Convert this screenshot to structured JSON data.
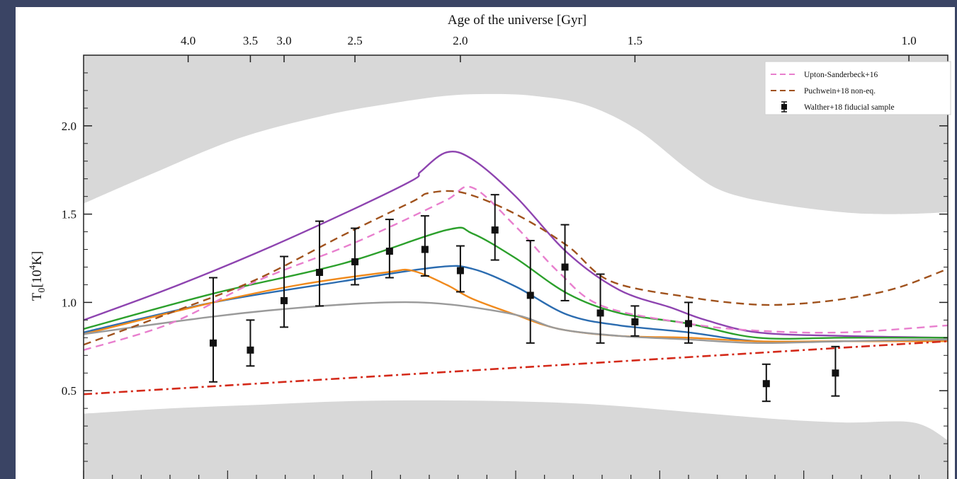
{
  "chart_data": {
    "type": "line",
    "title": "",
    "top_axis_label": "Age of the universe [Gyr]",
    "top_ticks": [
      "4.0",
      "3.5",
      "3.0",
      "2.5",
      "2.0",
      "1.5",
      "1.0"
    ],
    "ylabel": "T",
    "ylabel_sub": "0",
    "ylabel_unit_open": "[10",
    "ylabel_unit_exp": "4",
    "ylabel_unit_close": "K]",
    "ylim": [
      0.0,
      2.4
    ],
    "yticks": [
      "0.5",
      "1.0",
      "1.5",
      "2.0"
    ],
    "grid": false,
    "legend_position": "top-right",
    "legend": [
      {
        "label": "Upton-Sanderbeck+16",
        "color": "#e87fce",
        "style": "dashed"
      },
      {
        "label": "Puchwein+18 non-eq.",
        "color": "#a0521d",
        "style": "dashed"
      },
      {
        "label": "Walther+18 fiducial sample",
        "color": "#111111",
        "style": "marker"
      }
    ],
    "shaded_band": {
      "color": "#d8d8d8",
      "upper": [
        [
          0.0,
          1.56
        ],
        [
          0.08,
          1.73
        ],
        [
          0.18,
          1.93
        ],
        [
          0.28,
          2.06
        ],
        [
          0.36,
          2.13
        ],
        [
          0.42,
          2.17
        ],
        [
          0.47,
          2.18
        ],
        [
          0.52,
          2.17
        ],
        [
          0.58,
          2.12
        ],
        [
          0.64,
          1.98
        ],
        [
          0.7,
          1.75
        ],
        [
          0.74,
          1.63
        ],
        [
          0.8,
          1.56
        ],
        [
          0.88,
          1.51
        ],
        [
          0.94,
          1.5
        ],
        [
          1.0,
          1.51
        ]
      ],
      "lower": [
        [
          0.0,
          0.37
        ],
        [
          0.1,
          0.4
        ],
        [
          0.2,
          0.42
        ],
        [
          0.3,
          0.44
        ],
        [
          0.4,
          0.445
        ],
        [
          0.5,
          0.44
        ],
        [
          0.6,
          0.42
        ],
        [
          0.7,
          0.38
        ],
        [
          0.8,
          0.34
        ],
        [
          0.88,
          0.32
        ],
        [
          0.96,
          0.32
        ],
        [
          1.0,
          0.22
        ]
      ]
    },
    "series": [
      {
        "color": "#8e44b0",
        "style": "solid",
        "points": [
          [
            0.0,
            0.9
          ],
          [
            0.1,
            1.08
          ],
          [
            0.2,
            1.28
          ],
          [
            0.3,
            1.5
          ],
          [
            0.38,
            1.69
          ],
          [
            0.39,
            1.74
          ],
          [
            0.42,
            1.85
          ],
          [
            0.45,
            1.81
          ],
          [
            0.5,
            1.6
          ],
          [
            0.56,
            1.28
          ],
          [
            0.62,
            1.07
          ],
          [
            0.68,
            0.97
          ],
          [
            0.72,
            0.9
          ],
          [
            0.78,
            0.83
          ],
          [
            0.88,
            0.81
          ],
          [
            1.0,
            0.8
          ]
        ]
      },
      {
        "color": "#2ca02c",
        "style": "solid",
        "points": [
          [
            0.0,
            0.85
          ],
          [
            0.15,
            1.05
          ],
          [
            0.3,
            1.22
          ],
          [
            0.42,
            1.41
          ],
          [
            0.45,
            1.39
          ],
          [
            0.5,
            1.25
          ],
          [
            0.56,
            1.05
          ],
          [
            0.62,
            0.94
          ],
          [
            0.7,
            0.88
          ],
          [
            0.78,
            0.8
          ],
          [
            0.88,
            0.8
          ],
          [
            1.0,
            0.8
          ]
        ]
      },
      {
        "color": "#2b6cb0",
        "style": "solid",
        "points": [
          [
            0.0,
            0.83
          ],
          [
            0.15,
            1.0
          ],
          [
            0.3,
            1.12
          ],
          [
            0.41,
            1.2
          ],
          [
            0.45,
            1.19
          ],
          [
            0.5,
            1.09
          ],
          [
            0.56,
            0.93
          ],
          [
            0.62,
            0.87
          ],
          [
            0.7,
            0.83
          ],
          [
            0.78,
            0.78
          ],
          [
            0.88,
            0.78
          ],
          [
            1.0,
            0.78
          ]
        ]
      },
      {
        "color": "#f08a1d",
        "style": "solid",
        "points": [
          [
            0.0,
            0.82
          ],
          [
            0.15,
            1.0
          ],
          [
            0.25,
            1.1
          ],
          [
            0.35,
            1.17
          ],
          [
            0.38,
            1.18
          ],
          [
            0.42,
            1.1
          ],
          [
            0.45,
            1.02
          ],
          [
            0.5,
            0.93
          ],
          [
            0.55,
            0.85
          ],
          [
            0.62,
            0.81
          ],
          [
            0.7,
            0.8
          ],
          [
            0.78,
            0.78
          ],
          [
            0.88,
            0.78
          ],
          [
            1.0,
            0.78
          ]
        ]
      },
      {
        "color": "#9a9a9a",
        "style": "solid",
        "points": [
          [
            0.0,
            0.82
          ],
          [
            0.15,
            0.92
          ],
          [
            0.25,
            0.97
          ],
          [
            0.35,
            1.0
          ],
          [
            0.42,
            0.99
          ],
          [
            0.5,
            0.93
          ],
          [
            0.55,
            0.85
          ],
          [
            0.62,
            0.81
          ],
          [
            0.7,
            0.79
          ],
          [
            0.78,
            0.77
          ],
          [
            0.88,
            0.78
          ],
          [
            1.0,
            0.79
          ]
        ]
      },
      {
        "color": "#e87fce",
        "style": "dashed",
        "points": [
          [
            0.0,
            0.73
          ],
          [
            0.1,
            0.88
          ],
          [
            0.2,
            1.12
          ],
          [
            0.3,
            1.31
          ],
          [
            0.36,
            1.44
          ],
          [
            0.42,
            1.58
          ],
          [
            0.45,
            1.65
          ],
          [
            0.5,
            1.43
          ],
          [
            0.55,
            1.17
          ],
          [
            0.6,
            0.98
          ],
          [
            0.7,
            0.88
          ],
          [
            0.78,
            0.84
          ],
          [
            0.88,
            0.83
          ],
          [
            1.0,
            0.87
          ]
        ]
      },
      {
        "color": "#a0521d",
        "style": "dashed",
        "points": [
          [
            0.0,
            0.76
          ],
          [
            0.1,
            0.94
          ],
          [
            0.2,
            1.13
          ],
          [
            0.3,
            1.38
          ],
          [
            0.38,
            1.57
          ],
          [
            0.4,
            1.62
          ],
          [
            0.44,
            1.62
          ],
          [
            0.5,
            1.5
          ],
          [
            0.56,
            1.32
          ],
          [
            0.61,
            1.12
          ],
          [
            0.7,
            1.03
          ],
          [
            0.77,
            0.99
          ],
          [
            0.82,
            0.99
          ],
          [
            0.88,
            1.02
          ],
          [
            0.94,
            1.08
          ],
          [
            1.0,
            1.19
          ]
        ]
      },
      {
        "color": "#d42a1a",
        "style": "dashdot",
        "points": [
          [
            0.0,
            0.48
          ],
          [
            1.0,
            0.78
          ]
        ]
      }
    ],
    "data_points": [
      {
        "x": 0.15,
        "y": 0.77,
        "ylo": 0.55,
        "yhi": 1.14
      },
      {
        "x": 0.193,
        "y": 0.73,
        "ylo": 0.64,
        "yhi": 0.9
      },
      {
        "x": 0.232,
        "y": 1.01,
        "ylo": 0.86,
        "yhi": 1.26
      },
      {
        "x": 0.273,
        "y": 1.17,
        "ylo": 0.98,
        "yhi": 1.46
      },
      {
        "x": 0.314,
        "y": 1.23,
        "ylo": 1.1,
        "yhi": 1.42
      },
      {
        "x": 0.354,
        "y": 1.29,
        "ylo": 1.14,
        "yhi": 1.47
      },
      {
        "x": 0.395,
        "y": 1.3,
        "ylo": 1.15,
        "yhi": 1.49
      },
      {
        "x": 0.436,
        "y": 1.18,
        "ylo": 1.06,
        "yhi": 1.32
      },
      {
        "x": 0.476,
        "y": 1.41,
        "ylo": 1.24,
        "yhi": 1.61
      },
      {
        "x": 0.517,
        "y": 1.04,
        "ylo": 0.77,
        "yhi": 1.35
      },
      {
        "x": 0.557,
        "y": 1.2,
        "ylo": 1.01,
        "yhi": 1.44
      },
      {
        "x": 0.598,
        "y": 0.94,
        "ylo": 0.77,
        "yhi": 1.16
      },
      {
        "x": 0.638,
        "y": 0.89,
        "ylo": 0.81,
        "yhi": 0.98
      },
      {
        "x": 0.7,
        "y": 0.88,
        "ylo": 0.77,
        "yhi": 1.0
      },
      {
        "x": 0.79,
        "y": 0.54,
        "ylo": 0.44,
        "yhi": 0.65
      },
      {
        "x": 0.87,
        "y": 0.6,
        "ylo": 0.47,
        "yhi": 0.75
      }
    ]
  }
}
